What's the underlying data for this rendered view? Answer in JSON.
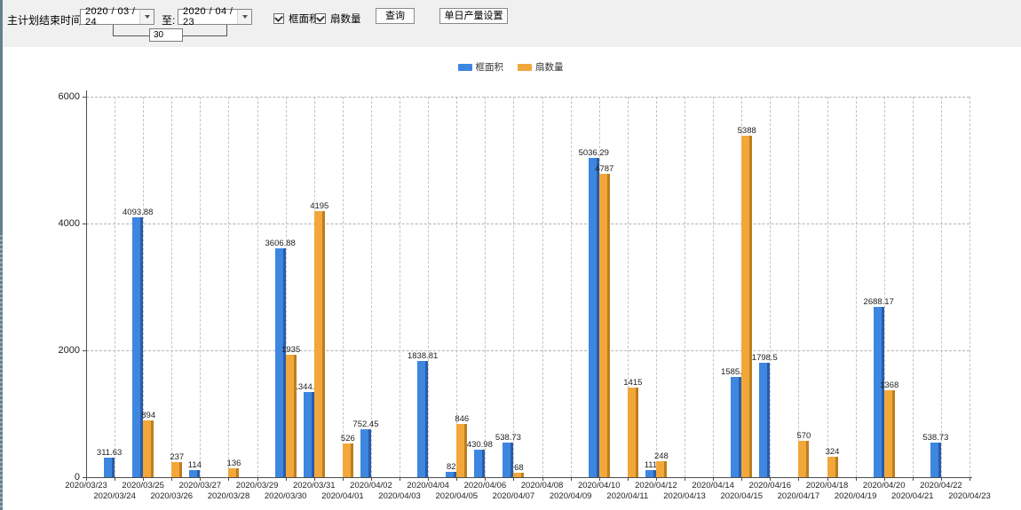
{
  "toolbar": {
    "label_end_time": "主计划结束时间:",
    "date_from": "2020 / 03 / 24",
    "to_label": "至:",
    "date_to": "2020 / 04 / 23",
    "interval_days": "30",
    "checkbox_frame": {
      "label": "框面积",
      "checked": true
    },
    "checkbox_fan": {
      "label": "扇数量",
      "checked": true
    },
    "query_label": "查询",
    "daily_label": "单日产量设置"
  },
  "icons": {
    "date_from_dropdown": "chevron-down-icon",
    "date_to_dropdown": "chevron-down-icon",
    "checkbox_checks": "check-icon"
  },
  "legend": [
    {
      "label": "框面积",
      "color": "#3d87e0"
    },
    {
      "label": "扇数量",
      "color": "#f2a73b"
    }
  ],
  "chart_data": {
    "type": "bar",
    "title": "",
    "xlabel": "",
    "ylabel": "",
    "ylim": [
      0,
      6000
    ],
    "yticks": [
      0,
      2000,
      4000,
      6000
    ],
    "grid": true,
    "legend_position": "top",
    "categories": [
      "2020/03/23",
      "2020/03/24",
      "2020/03/25",
      "2020/03/26",
      "2020/03/27",
      "2020/03/28",
      "2020/03/29",
      "2020/03/30",
      "2020/03/31",
      "2020/04/01",
      "2020/04/02",
      "2020/04/03",
      "2020/04/04",
      "2020/04/05",
      "2020/04/06",
      "2020/04/07",
      "2020/04/08",
      "2020/04/09",
      "2020/04/10",
      "2020/04/11",
      "2020/04/12",
      "2020/04/13",
      "2020/04/14",
      "2020/04/15",
      "2020/04/16",
      "2020/04/17",
      "2020/04/18",
      "2020/04/19",
      "2020/04/20",
      "2020/04/21",
      "2020/04/22",
      "2020/04/23"
    ],
    "series": [
      {
        "name": "框面积",
        "color": "#3d87e0",
        "edge_color": "#2a5caa",
        "values": [
          null,
          311.63,
          4093.88,
          null,
          114,
          null,
          null,
          3606.88,
          1344.95,
          null,
          752.45,
          null,
          1838.81,
          82,
          430.98,
          538.73,
          null,
          null,
          5036.29,
          null,
          111,
          null,
          null,
          1585.96,
          1798.5,
          null,
          null,
          null,
          2688.17,
          null,
          538.73,
          null
        ]
      },
      {
        "name": "扇数量",
        "color": "#f2a73b",
        "edge_color": "#bd7e1e",
        "values": [
          null,
          null,
          894,
          237,
          null,
          136,
          null,
          1935,
          4195,
          526,
          null,
          null,
          null,
          846,
          null,
          68,
          null,
          null,
          4787,
          1415,
          248,
          null,
          null,
          5388,
          null,
          570,
          324,
          null,
          1368,
          null,
          null,
          null
        ]
      }
    ]
  }
}
